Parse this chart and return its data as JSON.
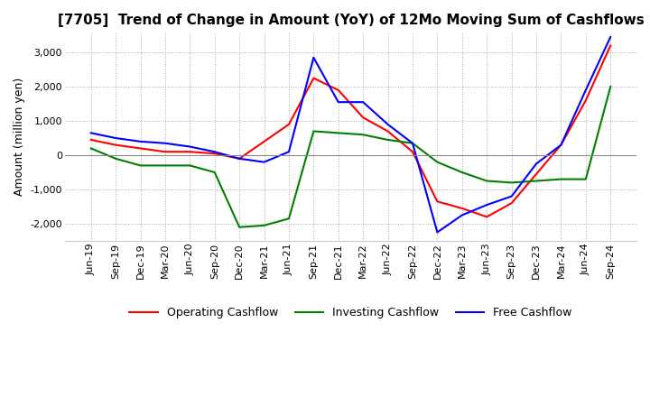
{
  "title": "[7705]  Trend of Change in Amount (YoY) of 12Mo Moving Sum of Cashflows",
  "ylabel": "Amount (million yen)",
  "ylim": [
    -2500,
    3600
  ],
  "yticks": [
    -2000,
    -1000,
    0,
    1000,
    2000,
    3000
  ],
  "x_labels": [
    "Jun-19",
    "Sep-19",
    "Dec-19",
    "Mar-20",
    "Jun-20",
    "Sep-20",
    "Dec-20",
    "Mar-21",
    "Jun-21",
    "Sep-21",
    "Dec-21",
    "Mar-22",
    "Jun-22",
    "Sep-22",
    "Dec-22",
    "Mar-23",
    "Jun-23",
    "Sep-23",
    "Dec-23",
    "Mar-24",
    "Jun-24",
    "Sep-24"
  ],
  "operating": [
    450,
    300,
    200,
    100,
    100,
    50,
    -100,
    400,
    900,
    2250,
    1900,
    1100,
    700,
    100,
    -1350,
    -1550,
    -1800,
    -1400,
    -550,
    300,
    1600,
    3200
  ],
  "investing": [
    200,
    -100,
    -300,
    -300,
    -300,
    -500,
    -2100,
    -2050,
    -1850,
    700,
    650,
    600,
    450,
    350,
    -200,
    -500,
    -750,
    -800,
    -750,
    -700,
    -700,
    2000
  ],
  "free": [
    650,
    500,
    400,
    350,
    250,
    100,
    -100,
    -200,
    100,
    2850,
    1550,
    1550,
    900,
    350,
    -2250,
    -1750,
    -1450,
    -1200,
    -250,
    300,
    1900,
    3450
  ],
  "op_color": "#ff0000",
  "inv_color": "#008000",
  "free_color": "#0000ff",
  "bg_color": "#ffffff",
  "grid_color": "#aaaaaa",
  "title_fontsize": 11,
  "label_fontsize": 9,
  "tick_fontsize": 8
}
